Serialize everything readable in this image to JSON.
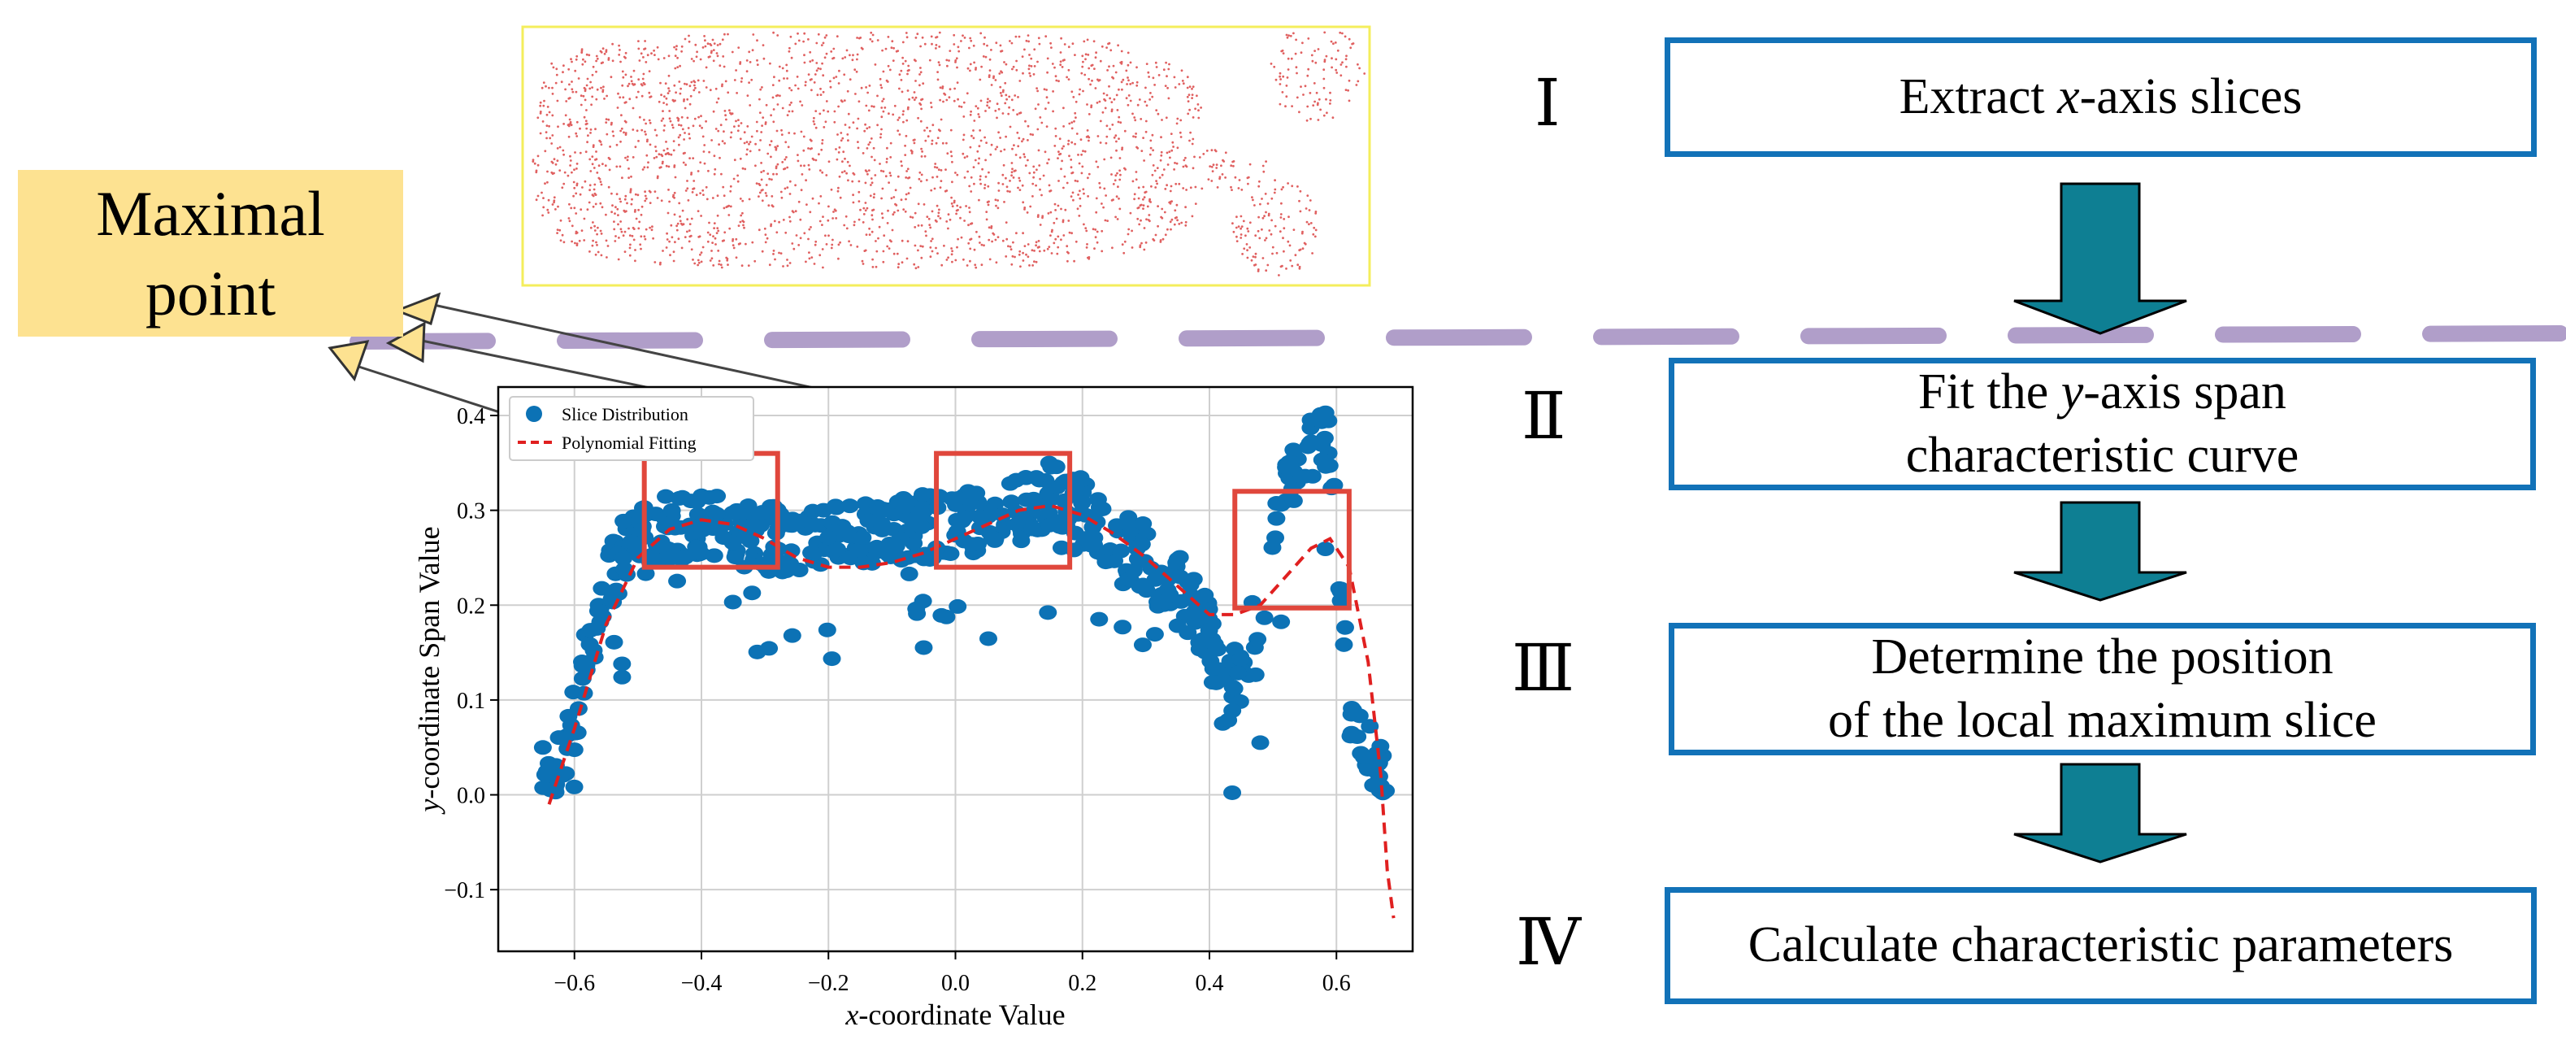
{
  "callout": {
    "line1": "Maximal",
    "line2": "point"
  },
  "steps": [
    {
      "numeral": "Ⅰ",
      "prefix": "Extract ",
      "italic": "x",
      "suffix": "-axis slices",
      "line2": ""
    },
    {
      "numeral": "Ⅱ",
      "prefix": "Fit the ",
      "italic": "y",
      "suffix": "-axis span",
      "line2": "characteristic curve"
    },
    {
      "numeral": "Ⅲ",
      "prefix": "Determine the position",
      "italic": "",
      "suffix": "",
      "line2": "of the local maximum slice"
    },
    {
      "numeral": "Ⅳ",
      "prefix": "Calculate characteristic parameters",
      "italic": "",
      "suffix": "",
      "line2": ""
    }
  ],
  "colors": {
    "box_border": "#1272b8",
    "arrow_fill": "#0e7f93",
    "dash_line": "#b09ec9",
    "callout_bg": "#fde291",
    "scatter": "#0c72b5",
    "fit_line": "#e02020",
    "highlight": "#e0473c",
    "point_cloud": "#e06060"
  },
  "chart_data": {
    "type": "scatter",
    "title": "",
    "xlabel_italic": "x",
    "xlabel_rest": "-coordinate Value",
    "ylabel_italic": "y",
    "ylabel_rest": "-coordinate Span Value",
    "xlim": [
      -0.72,
      0.72
    ],
    "ylim": [
      -0.165,
      0.43
    ],
    "x_ticks": [
      -0.6,
      -0.4,
      -0.2,
      0.0,
      0.2,
      0.4,
      0.6
    ],
    "x_tick_labels": [
      "−0.6",
      "−0.4",
      "−0.2",
      "0.0",
      "0.2",
      "0.4",
      "0.6"
    ],
    "y_ticks": [
      -0.1,
      0.0,
      0.1,
      0.2,
      0.3,
      0.4
    ],
    "y_tick_labels": [
      "−0.1",
      "0.0",
      "0.1",
      "0.2",
      "0.3",
      "0.4"
    ],
    "grid": true,
    "legend_position": "top-left",
    "series": [
      {
        "name": "Slice Distribution",
        "kind": "scatter"
      },
      {
        "name": "Polynomial Fitting",
        "kind": "dashed-line"
      }
    ],
    "scatter_trend": [
      [
        -0.65,
        0.02
      ],
      [
        -0.62,
        0.04
      ],
      [
        -0.6,
        0.08
      ],
      [
        -0.58,
        0.15
      ],
      [
        -0.55,
        0.22
      ],
      [
        -0.52,
        0.26
      ],
      [
        -0.48,
        0.28
      ],
      [
        -0.4,
        0.285
      ],
      [
        -0.3,
        0.27
      ],
      [
        -0.2,
        0.27
      ],
      [
        -0.1,
        0.28
      ],
      [
        0.0,
        0.285
      ],
      [
        0.1,
        0.3
      ],
      [
        0.15,
        0.32
      ],
      [
        0.2,
        0.3
      ],
      [
        0.25,
        0.27
      ],
      [
        0.3,
        0.25
      ],
      [
        0.35,
        0.22
      ],
      [
        0.4,
        0.17
      ],
      [
        0.42,
        0.1
      ],
      [
        0.45,
        0.13
      ],
      [
        0.48,
        0.2
      ],
      [
        0.52,
        0.33
      ],
      [
        0.56,
        0.37
      ],
      [
        0.59,
        0.38
      ],
      [
        0.62,
        0.1
      ],
      [
        0.66,
        0.03
      ],
      [
        0.68,
        0.01
      ]
    ],
    "fit_curve": [
      [
        -0.64,
        -0.01
      ],
      [
        -0.6,
        0.07
      ],
      [
        -0.55,
        0.18
      ],
      [
        -0.5,
        0.25
      ],
      [
        -0.45,
        0.28
      ],
      [
        -0.4,
        0.29
      ],
      [
        -0.35,
        0.285
      ],
      [
        -0.3,
        0.27
      ],
      [
        -0.25,
        0.25
      ],
      [
        -0.2,
        0.24
      ],
      [
        -0.15,
        0.24
      ],
      [
        -0.1,
        0.245
      ],
      [
        -0.05,
        0.255
      ],
      [
        0.0,
        0.27
      ],
      [
        0.05,
        0.285
      ],
      [
        0.1,
        0.3
      ],
      [
        0.15,
        0.305
      ],
      [
        0.2,
        0.295
      ],
      [
        0.25,
        0.275
      ],
      [
        0.3,
        0.25
      ],
      [
        0.35,
        0.22
      ],
      [
        0.4,
        0.19
      ],
      [
        0.44,
        0.19
      ],
      [
        0.48,
        0.2
      ],
      [
        0.52,
        0.23
      ],
      [
        0.56,
        0.26
      ],
      [
        0.59,
        0.27
      ],
      [
        0.62,
        0.24
      ],
      [
        0.65,
        0.14
      ],
      [
        0.67,
        0.02
      ],
      [
        0.68,
        -0.08
      ],
      [
        0.69,
        -0.13
      ]
    ],
    "highlight_boxes": [
      {
        "x0": -0.49,
        "x1": -0.28,
        "y0": 0.24,
        "y1": 0.36
      },
      {
        "x0": -0.03,
        "x1": 0.18,
        "y0": 0.24,
        "y1": 0.36
      },
      {
        "x0": 0.44,
        "x1": 0.62,
        "y0": 0.197,
        "y1": 0.32
      }
    ]
  }
}
